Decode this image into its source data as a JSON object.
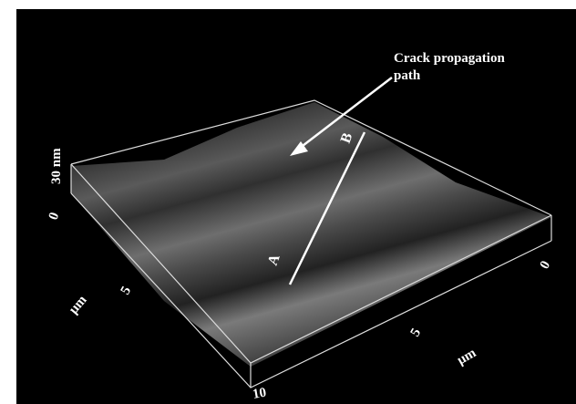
{
  "annotation": {
    "lines": [
      "Crack propagation",
      "path"
    ]
  },
  "points": {
    "start": "A",
    "end": "B"
  },
  "z_axis": {
    "top": "30 nm",
    "bottom": "0"
  },
  "left_axis": {
    "mid": "5",
    "unit": "μm",
    "end": "10"
  },
  "right_axis": {
    "start": "0",
    "mid": "5",
    "unit": "μm"
  }
}
